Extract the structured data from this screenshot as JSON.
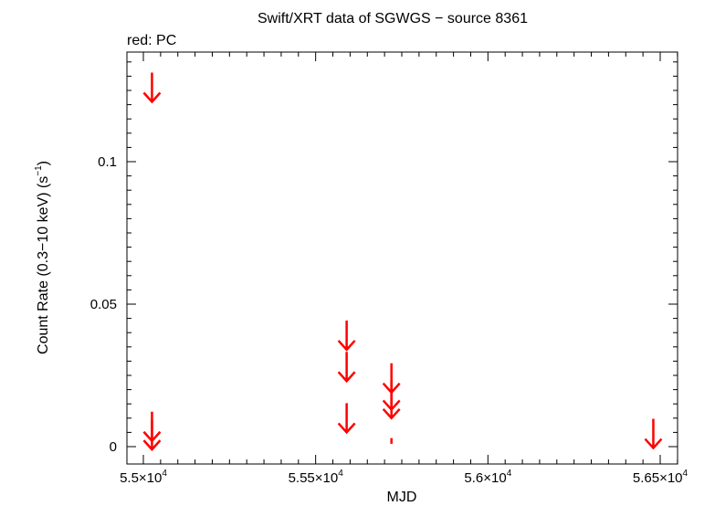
{
  "chart_data": {
    "type": "scatter",
    "title": "Swift/XRT data of SGWGS − source 8361",
    "subtitle": "red: PC",
    "xlabel": "MJD",
    "ylabel": "Count Rate (0.3−10 keV) (s",
    "ylabel_sup": "−1",
    "ylabel_close": ")",
    "xlim": [
      55000,
      56500
    ],
    "ylim": [
      -0.003,
      0.141
    ],
    "x_ticks": [
      {
        "value": 55000,
        "mantissa": "5.5×10",
        "exp": "4"
      },
      {
        "value": 55500,
        "mantissa": "5.55×10",
        "exp": "4"
      },
      {
        "value": 56000,
        "mantissa": "5.6×10",
        "exp": "4"
      },
      {
        "value": 56500,
        "mantissa": "5.65×10",
        "exp": "4"
      }
    ],
    "y_ticks": [
      {
        "value": 0,
        "label": "0"
      },
      {
        "value": 0.05,
        "label": "0.05"
      },
      {
        "value": 0.1,
        "label": "0.1"
      }
    ],
    "series": [
      {
        "color": "#ff0000",
        "upper_limits": [
          {
            "x": 55025,
            "y": 0.121
          },
          {
            "x": 55025,
            "y": 0.002
          },
          {
            "x": 55025,
            "y": -0.001
          },
          {
            "x": 55590,
            "y": 0.034
          },
          {
            "x": 55590,
            "y": 0.023
          },
          {
            "x": 55590,
            "y": 0.005
          },
          {
            "x": 55720,
            "y": 0.019
          },
          {
            "x": 55720,
            "y": 0.013
          },
          {
            "x": 55720,
            "y": 0.01
          },
          {
            "x": 56480,
            "y": -0.0005
          }
        ],
        "points": [
          {
            "x": 55720,
            "y": 0.002,
            "yerr": 0.001
          }
        ]
      }
    ]
  }
}
